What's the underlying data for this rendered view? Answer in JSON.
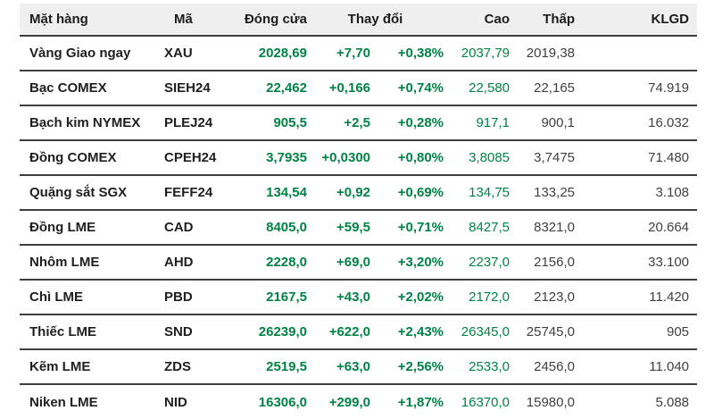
{
  "theme": {
    "accent_green": "#008345",
    "header_bg": "#efefef",
    "text_dark": "#1f1f1f",
    "text_value": "#404040",
    "separator": "#3f3f3f"
  },
  "chart_data": {
    "type": "table",
    "headers": {
      "item": "Mặt hàng",
      "code": "Mã",
      "close": "Đóng cửa",
      "change": "Thay đổi",
      "high": "Cao",
      "low": "Thấp",
      "volume": "KLGD"
    },
    "rows": [
      {
        "item": "Vàng Giao ngay",
        "code": "XAU",
        "close": "2028,69",
        "change": "+7,70",
        "change_pct": "+0,38%",
        "high": "2037,79",
        "low": "2019,38",
        "volume": ""
      },
      {
        "item": "Bạc COMEX",
        "code": "SIEH24",
        "close": "22,462",
        "change": "+0,166",
        "change_pct": "+0,74%",
        "high": "22,580",
        "low": "22,165",
        "volume": "74.919"
      },
      {
        "item": "Bạch kim NYMEX",
        "code": "PLEJ24",
        "close": "905,5",
        "change": "+2,5",
        "change_pct": "+0,28%",
        "high": "917,1",
        "low": "900,1",
        "volume": "16.032"
      },
      {
        "item": "Đồng COMEX",
        "code": "CPEH24",
        "close": "3,7935",
        "change": "+0,0300",
        "change_pct": "+0,80%",
        "high": "3,8085",
        "low": "3,7475",
        "volume": "71.480"
      },
      {
        "item": "Quặng sắt SGX",
        "code": "FEFF24",
        "close": "134,54",
        "change": "+0,92",
        "change_pct": "+0,69%",
        "high": "134,75",
        "low": "133,25",
        "volume": "3.108"
      },
      {
        "item": "Đồng LME",
        "code": "CAD",
        "close": "8405,0",
        "change": "+59,5",
        "change_pct": "+0,71%",
        "high": "8427,5",
        "low": "8321,0",
        "volume": "20.664"
      },
      {
        "item": "Nhôm LME",
        "code": "AHD",
        "close": "2228,0",
        "change": "+69,0",
        "change_pct": "+3,20%",
        "high": "2237,0",
        "low": "2156,0",
        "volume": "33.100"
      },
      {
        "item": "Chì LME",
        "code": "PBD",
        "close": "2167,5",
        "change": "+43,0",
        "change_pct": "+2,02%",
        "high": "2172,0",
        "low": "2123,0",
        "volume": "11.420"
      },
      {
        "item": "Thiếc LME",
        "code": "SND",
        "close": "26239,0",
        "change": "+622,0",
        "change_pct": "+2,43%",
        "high": "26345,0",
        "low": "25745,0",
        "volume": "905"
      },
      {
        "item": "Kẽm LME",
        "code": "ZDS",
        "close": "2519,5",
        "change": "+63,0",
        "change_pct": "+2,56%",
        "high": "2533,0",
        "low": "2456,0",
        "volume": "11.040"
      },
      {
        "item": "Niken LME",
        "code": "NID",
        "close": "16306,0",
        "change": "+299,0",
        "change_pct": "+1,87%",
        "high": "16370,0",
        "low": "15980,0",
        "volume": "5.088"
      }
    ]
  }
}
